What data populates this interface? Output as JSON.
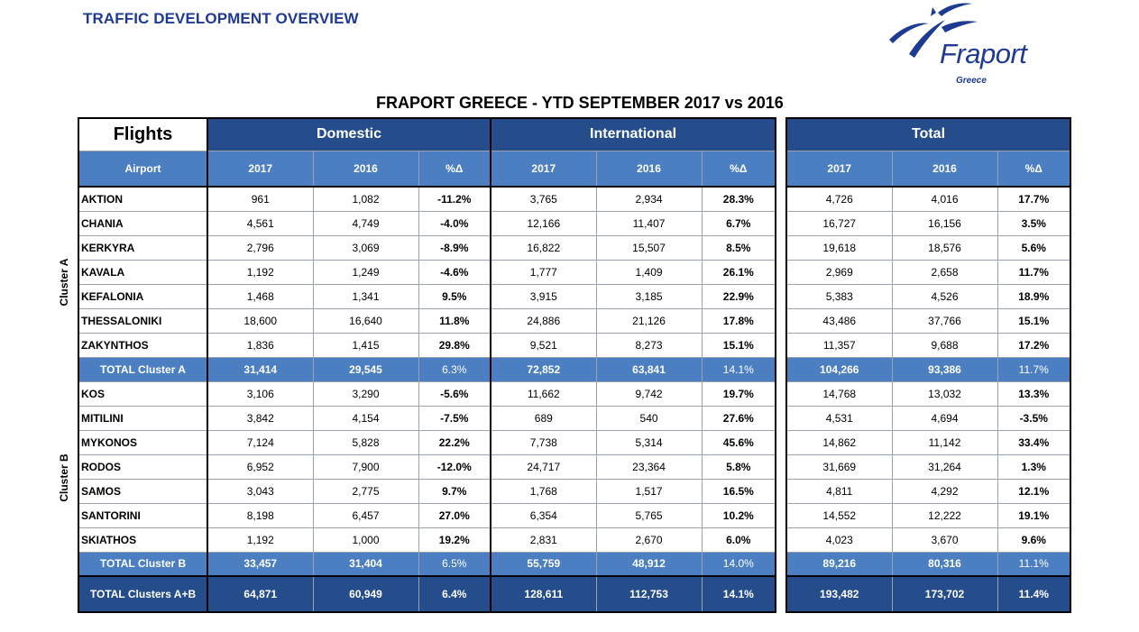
{
  "page_title": "TRAFFIC DEVELOPMENT OVERVIEW",
  "logo": {
    "word": "Fraport",
    "sub": "Greece"
  },
  "report_title": "FRAPORT GREECE - YTD SEPTEMBER 2017 vs 2016",
  "header": {
    "flights": "Flights",
    "domestic": "Domestic",
    "international": "International",
    "total": "Total",
    "airport": "Airport",
    "y2017": "2017",
    "y2016": "2016",
    "pct": "%Δ"
  },
  "clusters": {
    "a_label": "Cluster A",
    "b_label": "Cluster B"
  },
  "rows": [
    {
      "airport": "AKTION",
      "dom_2017": "961",
      "dom_2016": "1,082",
      "dom_pct": "-11.2%",
      "int_2017": "3,765",
      "int_2016": "2,934",
      "int_pct": "28.3%",
      "tot_2017": "4,726",
      "tot_2016": "4,016",
      "tot_pct": "17.7%"
    },
    {
      "airport": "CHANIA",
      "dom_2017": "4,561",
      "dom_2016": "4,749",
      "dom_pct": "-4.0%",
      "int_2017": "12,166",
      "int_2016": "11,407",
      "int_pct": "6.7%",
      "tot_2017": "16,727",
      "tot_2016": "16,156",
      "tot_pct": "3.5%"
    },
    {
      "airport": "KERKYRA",
      "dom_2017": "2,796",
      "dom_2016": "3,069",
      "dom_pct": "-8.9%",
      "int_2017": "16,822",
      "int_2016": "15,507",
      "int_pct": "8.5%",
      "tot_2017": "19,618",
      "tot_2016": "18,576",
      "tot_pct": "5.6%"
    },
    {
      "airport": "KAVALA",
      "dom_2017": "1,192",
      "dom_2016": "1,249",
      "dom_pct": "-4.6%",
      "int_2017": "1,777",
      "int_2016": "1,409",
      "int_pct": "26.1%",
      "tot_2017": "2,969",
      "tot_2016": "2,658",
      "tot_pct": "11.7%"
    },
    {
      "airport": "KEFALONIA",
      "dom_2017": "1,468",
      "dom_2016": "1,341",
      "dom_pct": "9.5%",
      "int_2017": "3,915",
      "int_2016": "3,185",
      "int_pct": "22.9%",
      "tot_2017": "5,383",
      "tot_2016": "4,526",
      "tot_pct": "18.9%"
    },
    {
      "airport": "THESSALONIKI",
      "dom_2017": "18,600",
      "dom_2016": "16,640",
      "dom_pct": "11.8%",
      "int_2017": "24,886",
      "int_2016": "21,126",
      "int_pct": "17.8%",
      "tot_2017": "43,486",
      "tot_2016": "37,766",
      "tot_pct": "15.1%"
    },
    {
      "airport": "ZAKYNTHOS",
      "dom_2017": "1,836",
      "dom_2016": "1,415",
      "dom_pct": "29.8%",
      "int_2017": "9,521",
      "int_2016": "8,273",
      "int_pct": "15.1%",
      "tot_2017": "11,357",
      "tot_2016": "9,688",
      "tot_pct": "17.2%"
    },
    {
      "airport": "TOTAL Cluster A",
      "dom_2017": "31,414",
      "dom_2016": "29,545",
      "dom_pct": "6.3%",
      "int_2017": "72,852",
      "int_2016": "63,841",
      "int_pct": "14.1%",
      "tot_2017": "104,266",
      "tot_2016": "93,386",
      "tot_pct": "11.7%"
    },
    {
      "airport": "KOS",
      "dom_2017": "3,106",
      "dom_2016": "3,290",
      "dom_pct": "-5.6%",
      "int_2017": "11,662",
      "int_2016": "9,742",
      "int_pct": "19.7%",
      "tot_2017": "14,768",
      "tot_2016": "13,032",
      "tot_pct": "13.3%"
    },
    {
      "airport": "MITILINI",
      "dom_2017": "3,842",
      "dom_2016": "4,154",
      "dom_pct": "-7.5%",
      "int_2017": "689",
      "int_2016": "540",
      "int_pct": "27.6%",
      "tot_2017": "4,531",
      "tot_2016": "4,694",
      "tot_pct": "-3.5%"
    },
    {
      "airport": "MYKONOS",
      "dom_2017": "7,124",
      "dom_2016": "5,828",
      "dom_pct": "22.2%",
      "int_2017": "7,738",
      "int_2016": "5,314",
      "int_pct": "45.6%",
      "tot_2017": "14,862",
      "tot_2016": "11,142",
      "tot_pct": "33.4%"
    },
    {
      "airport": "RODOS",
      "dom_2017": "6,952",
      "dom_2016": "7,900",
      "dom_pct": "-12.0%",
      "int_2017": "24,717",
      "int_2016": "23,364",
      "int_pct": "5.8%",
      "tot_2017": "31,669",
      "tot_2016": "31,264",
      "tot_pct": "1.3%"
    },
    {
      "airport": "SAMOS",
      "dom_2017": "3,043",
      "dom_2016": "2,775",
      "dom_pct": "9.7%",
      "int_2017": "1,768",
      "int_2016": "1,517",
      "int_pct": "16.5%",
      "tot_2017": "4,811",
      "tot_2016": "4,292",
      "tot_pct": "12.1%"
    },
    {
      "airport": "SANTORINI",
      "dom_2017": "8,198",
      "dom_2016": "6,457",
      "dom_pct": "27.0%",
      "int_2017": "6,354",
      "int_2016": "5,765",
      "int_pct": "10.2%",
      "tot_2017": "14,552",
      "tot_2016": "12,222",
      "tot_pct": "19.1%"
    },
    {
      "airport": "SKIATHOS",
      "dom_2017": "1,192",
      "dom_2016": "1,000",
      "dom_pct": "19.2%",
      "int_2017": "2,831",
      "int_2016": "2,670",
      "int_pct": "6.0%",
      "tot_2017": "4,023",
      "tot_2016": "3,670",
      "tot_pct": "9.6%"
    },
    {
      "airport": "TOTAL Cluster B",
      "dom_2017": "33,457",
      "dom_2016": "31,404",
      "dom_pct": "6.5%",
      "int_2017": "55,759",
      "int_2016": "48,912",
      "int_pct": "14.0%",
      "tot_2017": "89,216",
      "tot_2016": "80,316",
      "tot_pct": "11.1%"
    },
    {
      "airport": "TOTAL Clusters A+B",
      "dom_2017": "64,871",
      "dom_2016": "60,949",
      "dom_pct": "6.4%",
      "int_2017": "128,611",
      "int_2016": "112,753",
      "int_pct": "14.1%",
      "tot_2017": "193,482",
      "tot_2016": "173,702",
      "tot_pct": "11.4%"
    }
  ]
}
